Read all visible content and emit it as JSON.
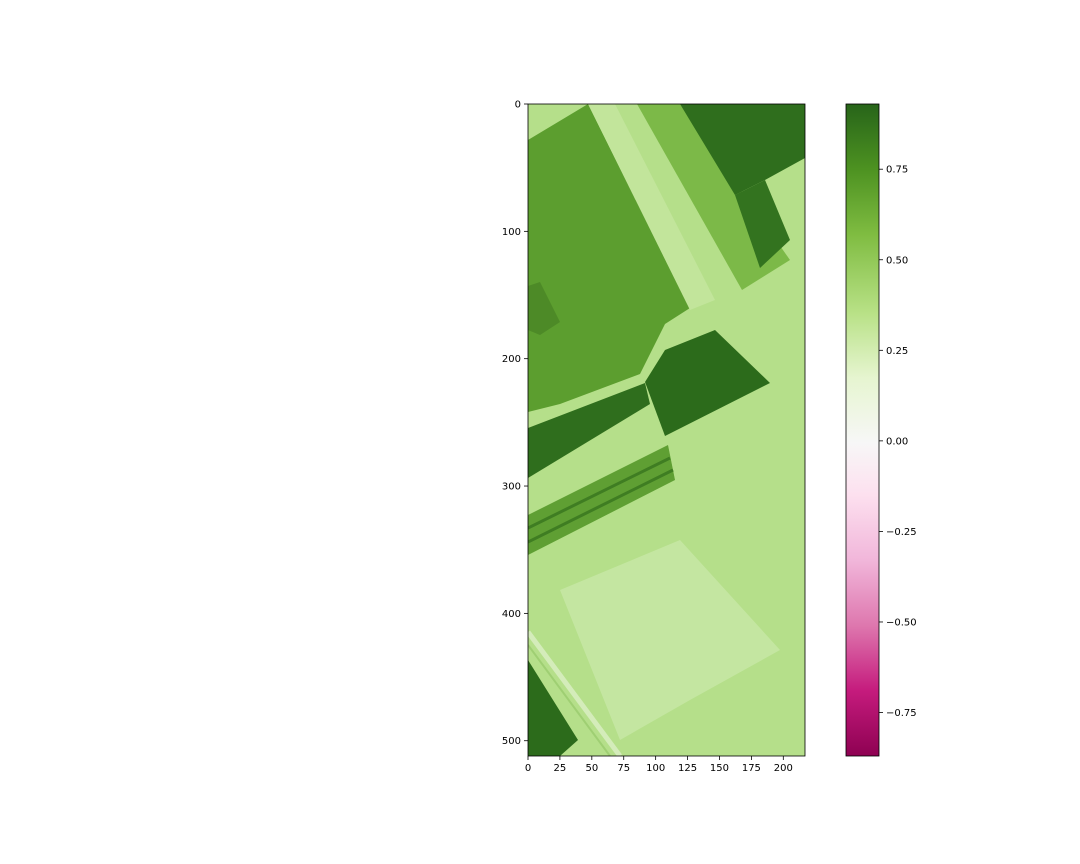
{
  "chart_data": {
    "type": "heatmap",
    "title": "",
    "xlabel": "",
    "ylabel": "",
    "image_shape": {
      "rows": 512,
      "cols": 217
    },
    "xlim": [
      0,
      217
    ],
    "ylim": [
      512,
      0
    ],
    "x_ticks": [
      0,
      25,
      50,
      75,
      100,
      125,
      150,
      175,
      200
    ],
    "x_tick_labels": [
      "0",
      "25",
      "50",
      "75",
      "100",
      "125",
      "150",
      "175",
      "200"
    ],
    "y_ticks": [
      0,
      100,
      200,
      300,
      400,
      500
    ],
    "y_tick_labels": [
      "0",
      "100",
      "200",
      "300",
      "400",
      "500"
    ],
    "colorbar": {
      "colormap": "PiYG",
      "vmin": -0.87,
      "vmax": 0.93,
      "ticks": [
        0.75,
        0.5,
        0.25,
        0.0,
        -0.25,
        -0.5,
        -0.75
      ],
      "tick_labels": [
        "0.75",
        "0.50",
        "0.25",
        "0.00",
        "−0.25",
        "−0.50",
        "−0.75"
      ]
    },
    "regions": [
      {
        "desc": "background field",
        "value": 0.44
      },
      {
        "desc": "upper-left crop field",
        "value": 0.66
      },
      {
        "desc": "diagonal strip",
        "value": 0.44
      },
      {
        "desc": "upper-right dark field",
        "value": 0.86
      },
      {
        "desc": "central dark field",
        "value": 0.88
      },
      {
        "desc": "dark band left",
        "value": 0.86
      },
      {
        "desc": "striped band",
        "value": 0.62
      },
      {
        "desc": "bottom-left dark field",
        "value": 0.84
      },
      {
        "desc": "lower light fields",
        "value": 0.4
      }
    ],
    "colors": {
      "dark_green": "#2c6b1b",
      "mid_green": "#5c9e2f",
      "light_green": "#b5df8a",
      "white": "#f7f7f7",
      "pink": "#de77ae",
      "magenta": "#8e0152"
    }
  }
}
